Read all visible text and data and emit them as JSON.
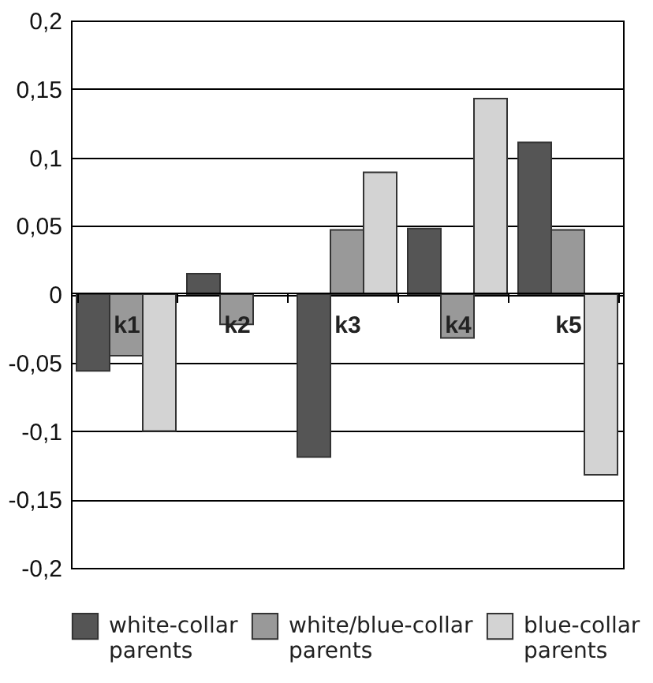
{
  "chart_data": {
    "type": "bar",
    "categories": [
      "k1",
      "k2",
      "k3",
      "k4",
      "k5"
    ],
    "series": [
      {
        "name": "white-collar parents",
        "color": "#555555",
        "values": [
          -0.056,
          0.015,
          -0.119,
          0.048,
          0.111
        ]
      },
      {
        "name": "white/blue-collar parents",
        "color": "#999999",
        "values": [
          -0.045,
          -0.022,
          0.047,
          -0.032,
          0.047
        ]
      },
      {
        "name": "blue-collar parents",
        "color": "#d3d3d3",
        "values": [
          -0.1,
          null,
          0.089,
          0.143,
          -0.132
        ]
      }
    ],
    "ylim": [
      -0.2,
      0.2
    ],
    "yticks": [
      {
        "value": -0.2,
        "label": "-0,2"
      },
      {
        "value": -0.15,
        "label": "-0,15"
      },
      {
        "value": -0.1,
        "label": "-0,1"
      },
      {
        "value": -0.05,
        "label": "-0,05"
      },
      {
        "value": 0,
        "label": "0"
      },
      {
        "value": 0.05,
        "label": "0,05"
      },
      {
        "value": 0.1,
        "label": "0,1"
      },
      {
        "value": 0.15,
        "label": "0,15"
      },
      {
        "value": 0.2,
        "label": "0,2"
      }
    ],
    "grid": "y",
    "legend": "bottom"
  }
}
